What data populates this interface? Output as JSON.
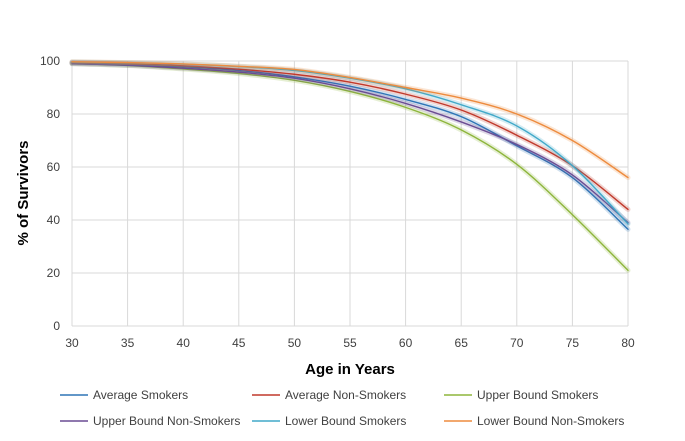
{
  "chart_data": {
    "type": "line",
    "xlabel": "Age in Years",
    "ylabel": "% of Survivors",
    "xlim": [
      30,
      80
    ],
    "ylim": [
      0,
      100
    ],
    "x_ticks": [
      30,
      35,
      40,
      45,
      50,
      55,
      60,
      65,
      70,
      75,
      80
    ],
    "y_ticks": [
      0,
      20,
      40,
      60,
      80,
      100
    ],
    "grid": true,
    "legend_position": "bottom",
    "x": [
      30,
      35,
      40,
      45,
      50,
      55,
      60,
      65,
      70,
      75,
      80
    ],
    "series": [
      {
        "name": "Average Smokers",
        "color": "#2e75b6",
        "values": [
          99.3,
          98.8,
          97.8,
          96.4,
          94.0,
          90.5,
          85.5,
          79.0,
          68.0,
          56.0,
          36.5
        ]
      },
      {
        "name": "Average Non-Smokers",
        "color": "#c0392b",
        "values": [
          99.4,
          99.0,
          98.2,
          96.9,
          95.0,
          92.0,
          87.5,
          81.5,
          72.0,
          60.5,
          44.0
        ]
      },
      {
        "name": "Upper Bound Smokers",
        "color": "#8db53b",
        "values": [
          99.0,
          98.3,
          97.0,
          95.3,
          92.7,
          88.5,
          82.5,
          74.0,
          61.0,
          42.0,
          21.0
        ]
      },
      {
        "name": "Upper Bound Non-Smokers",
        "color": "#6a4c93",
        "values": [
          99.0,
          98.4,
          97.3,
          95.8,
          93.5,
          89.5,
          84.0,
          77.0,
          68.5,
          57.0,
          39.0
        ]
      },
      {
        "name": "Lower Bound Smokers",
        "color": "#41a9c9",
        "values": [
          99.6,
          99.3,
          98.8,
          97.9,
          96.4,
          93.5,
          89.5,
          83.5,
          75.5,
          60.5,
          38.5
        ]
      },
      {
        "name": "Lower Bound Non-Smokers",
        "color": "#ed8b3e",
        "values": [
          99.7,
          99.4,
          98.9,
          98.0,
          96.8,
          93.8,
          90.0,
          86.0,
          80.0,
          70.0,
          56.0
        ]
      }
    ]
  }
}
